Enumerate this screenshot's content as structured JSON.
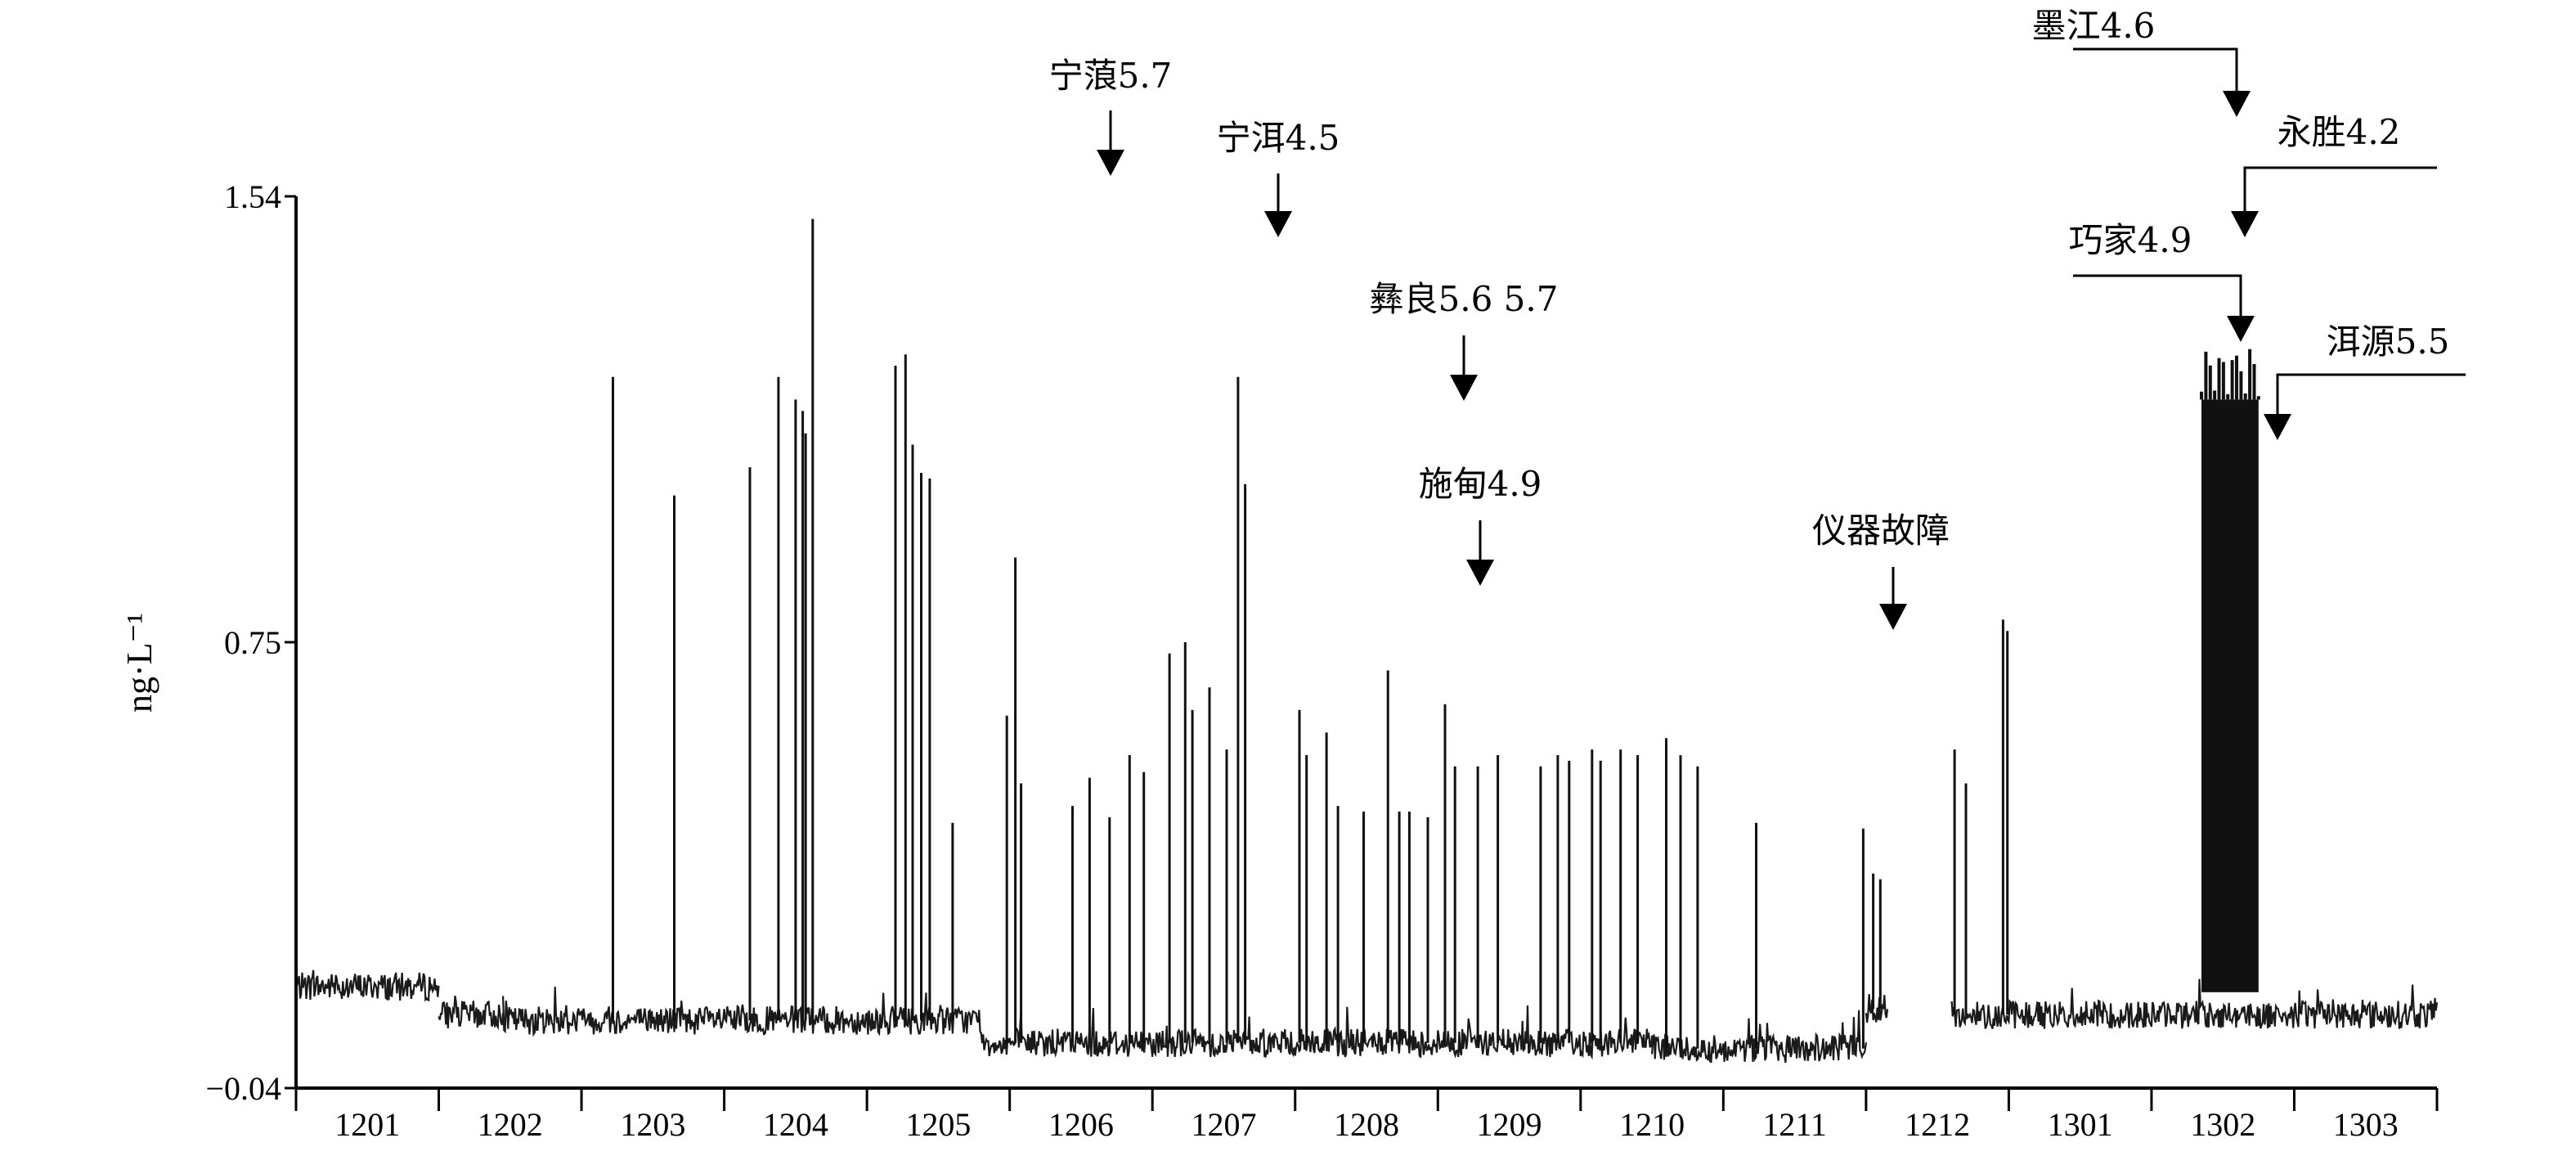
{
  "chart_data": {
    "type": "line",
    "xlabel": "",
    "ylabel": "ng·L⁻¹",
    "ylim": [
      -0.04,
      1.54
    ],
    "yticks": [
      1.54,
      0.75,
      -0.04
    ],
    "ytick_labels": [
      "1.54",
      "0.75",
      "−0.04"
    ],
    "categories": [
      "1201",
      "1202",
      "1203",
      "1204",
      "1205",
      "1206",
      "1207",
      "1208",
      "1209",
      "1210",
      "1211",
      "1212",
      "1301",
      "1302",
      "1303"
    ],
    "grid": false,
    "baseline": [
      {
        "start": 0.0,
        "end": 1.0,
        "value": 0.14
      },
      {
        "start": 1.0,
        "end": 1.45,
        "value": 0.09
      },
      {
        "start": 1.45,
        "end": 4.8,
        "value": 0.08
      },
      {
        "start": 4.8,
        "end": 9.5,
        "value": 0.04
      },
      {
        "start": 9.5,
        "end": 11.0,
        "value": 0.03
      },
      {
        "start": 11.0,
        "end": 11.15,
        "value": 0.1
      },
      {
        "start": 11.6,
        "end": 15.0,
        "value": 0.09
      }
    ],
    "gap": {
      "start": 11.15,
      "end": 11.6
    },
    "peaks": [
      {
        "x": 2.22,
        "y": 1.22
      },
      {
        "x": 2.65,
        "y": 1.01
      },
      {
        "x": 3.18,
        "y": 1.06
      },
      {
        "x": 3.38,
        "y": 1.22
      },
      {
        "x": 3.5,
        "y": 1.18
      },
      {
        "x": 3.55,
        "y": 1.16
      },
      {
        "x": 3.62,
        "y": 1.5
      },
      {
        "x": 3.57,
        "y": 1.12
      },
      {
        "x": 4.2,
        "y": 1.24
      },
      {
        "x": 4.27,
        "y": 1.26
      },
      {
        "x": 4.32,
        "y": 1.1
      },
      {
        "x": 4.38,
        "y": 1.05
      },
      {
        "x": 4.44,
        "y": 1.04
      },
      {
        "x": 4.6,
        "y": 0.43
      },
      {
        "x": 4.98,
        "y": 0.62
      },
      {
        "x": 5.04,
        "y": 0.9
      },
      {
        "x": 5.08,
        "y": 0.5
      },
      {
        "x": 5.44,
        "y": 0.46
      },
      {
        "x": 5.56,
        "y": 0.51
      },
      {
        "x": 5.7,
        "y": 0.44
      },
      {
        "x": 5.84,
        "y": 0.55
      },
      {
        "x": 5.94,
        "y": 0.52
      },
      {
        "x": 6.12,
        "y": 0.73
      },
      {
        "x": 6.23,
        "y": 0.75
      },
      {
        "x": 6.28,
        "y": 0.63
      },
      {
        "x": 6.4,
        "y": 0.67
      },
      {
        "x": 6.52,
        "y": 0.56
      },
      {
        "x": 6.6,
        "y": 1.22
      },
      {
        "x": 6.65,
        "y": 1.03
      },
      {
        "x": 7.03,
        "y": 0.63
      },
      {
        "x": 7.08,
        "y": 0.55
      },
      {
        "x": 7.22,
        "y": 0.59
      },
      {
        "x": 7.3,
        "y": 0.46
      },
      {
        "x": 7.48,
        "y": 0.45
      },
      {
        "x": 7.65,
        "y": 0.7
      },
      {
        "x": 7.73,
        "y": 0.45
      },
      {
        "x": 7.8,
        "y": 0.45
      },
      {
        "x": 7.93,
        "y": 0.44
      },
      {
        "x": 8.05,
        "y": 0.64
      },
      {
        "x": 8.12,
        "y": 0.53
      },
      {
        "x": 8.28,
        "y": 0.53
      },
      {
        "x": 8.42,
        "y": 0.55
      },
      {
        "x": 8.72,
        "y": 0.53
      },
      {
        "x": 8.84,
        "y": 0.55
      },
      {
        "x": 8.92,
        "y": 0.54
      },
      {
        "x": 9.08,
        "y": 0.56
      },
      {
        "x": 9.14,
        "y": 0.54
      },
      {
        "x": 9.28,
        "y": 0.56
      },
      {
        "x": 9.4,
        "y": 0.55
      },
      {
        "x": 9.6,
        "y": 0.58
      },
      {
        "x": 9.7,
        "y": 0.55
      },
      {
        "x": 9.82,
        "y": 0.53
      },
      {
        "x": 10.23,
        "y": 0.43
      },
      {
        "x": 10.98,
        "y": 0.42
      },
      {
        "x": 11.05,
        "y": 0.34
      },
      {
        "x": 11.1,
        "y": 0.33
      },
      {
        "x": 11.62,
        "y": 0.56
      },
      {
        "x": 11.7,
        "y": 0.5
      },
      {
        "x": 11.96,
        "y": 0.79
      },
      {
        "x": 11.99,
        "y": 0.77
      }
    ],
    "block": {
      "start": 13.35,
      "end": 13.75,
      "bottom": 0.13,
      "top": 1.18,
      "peak": 1.28
    },
    "annotations": [
      {
        "label": "宁蒗5.7",
        "x": 5.76,
        "y": 1.59
      },
      {
        "label": "宁洱4.5",
        "x": 6.94,
        "y": 1.47
      },
      {
        "label": "彝良5.6 5.7",
        "x": 8.13,
        "y": 1.26
      },
      {
        "label": "施甸4.9",
        "x": 8.27,
        "y": 0.93
      },
      {
        "label": "仪器故障",
        "x": 11.25,
        "y": 0.77
      },
      {
        "label": "墨江4.6",
        "x": 13.38,
        "y": 1.74
      },
      {
        "label": "永胜4.2",
        "x": 13.45,
        "y": 1.46
      },
      {
        "label": "巧家4.9",
        "x": 13.42,
        "y": 1.29
      },
      {
        "label": "洱源5.5",
        "x": 13.68,
        "y": 1.1
      }
    ]
  }
}
